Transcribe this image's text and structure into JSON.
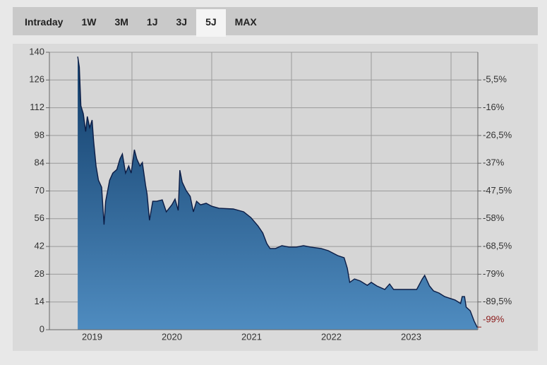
{
  "tabs": [
    "Intraday",
    "1W",
    "3M",
    "1J",
    "3J",
    "5J",
    "MAX"
  ],
  "selected_tab": 5,
  "chart_data": {
    "type": "area",
    "series": [
      {
        "color": "#0b1c45",
        "x": [
          2019.32,
          2019.34,
          2019.36,
          2019.39,
          2019.42,
          2019.44,
          2019.47,
          2019.5,
          2019.52,
          2019.55,
          2019.58,
          2019.62,
          2019.65,
          2019.67,
          2019.72,
          2019.76,
          2019.81,
          2019.85,
          2019.88,
          2019.92,
          2019.96,
          2019.99,
          2020.03,
          2020.06,
          2020.1,
          2020.13,
          2020.17,
          2020.19,
          2020.22,
          2020.26,
          2020.31,
          2020.38,
          2020.43,
          2020.5,
          2020.54,
          2020.58,
          2020.6,
          2020.63,
          2020.68,
          2020.73,
          2020.77,
          2020.81,
          2020.86,
          2020.93,
          2021.0,
          2021.09,
          2021.27,
          2021.4,
          2021.49,
          2021.58,
          2021.64,
          2021.69,
          2021.73,
          2021.8,
          2021.88,
          2021.97,
          2022.06,
          2022.15,
          2022.24,
          2022.37,
          2022.46,
          2022.58,
          2022.66,
          2022.7,
          2022.73,
          2022.79,
          2022.86,
          2022.95,
          2023.0,
          2023.07,
          2023.17,
          2023.23,
          2023.28,
          2023.39,
          2023.57,
          2023.64,
          2023.67,
          2023.73,
          2023.78,
          2023.85,
          2023.92,
          2024.05,
          2024.12,
          2024.14,
          2024.17,
          2024.19,
          2024.24,
          2024.29,
          2024.33
        ],
        "values": [
          137.8,
          132.5,
          113,
          109,
          100,
          107.6,
          102,
          105.8,
          95,
          82.6,
          75.4,
          71.9,
          53,
          64.8,
          75.4,
          79,
          80.8,
          86.2,
          88.7,
          79,
          82.6,
          79,
          90.8,
          86.2,
          82.6,
          84.4,
          73,
          68.4,
          55.2,
          64.8,
          64.8,
          65.5,
          59.5,
          63,
          65.9,
          60.2,
          80.5,
          74.4,
          70.2,
          67.3,
          59.5,
          64.8,
          63,
          63.8,
          62.3,
          61.3,
          60.9,
          59.5,
          56.6,
          52.4,
          48.8,
          43.5,
          41,
          41,
          42.4,
          41.7,
          41.7,
          42.4,
          41.7,
          41,
          39.9,
          37.4,
          36.3,
          31,
          23.9,
          25.6,
          24.6,
          22.4,
          23.9,
          22.1,
          20.3,
          23.1,
          20.3,
          20.3,
          20.3,
          25.6,
          27.4,
          22.1,
          19.6,
          18.5,
          16.7,
          15,
          13.2,
          16.7,
          16.7,
          11.4,
          9.6,
          4.3,
          1.1
        ]
      }
    ],
    "xlim": [
      2018.965,
      2024.336
    ],
    "xticks": [
      {
        "value": 2019.5,
        "label": "2019"
      },
      {
        "value": 2020.5,
        "label": "2020"
      },
      {
        "value": 2021.5,
        "label": "2021"
      },
      {
        "value": 2022.5,
        "label": "2022"
      },
      {
        "value": 2023.5,
        "label": "2023"
      }
    ],
    "xgrid": [
      2020,
      2021,
      2022,
      2023,
      2024
    ],
    "ylim": [
      0,
      140
    ],
    "yticks": [
      0,
      14,
      28,
      42,
      56,
      70,
      84,
      98,
      112,
      126,
      140
    ],
    "y2lim": [
      -100,
      5
    ],
    "y2ticks": [
      {
        "value": -5.5,
        "label": "-5,5%"
      },
      {
        "value": -16,
        "label": "-16%"
      },
      {
        "value": -26.5,
        "label": "-26,5%"
      },
      {
        "value": -37,
        "label": "-37%"
      },
      {
        "value": -47.5,
        "label": "-47,5%"
      },
      {
        "value": -58,
        "label": "-58%"
      },
      {
        "value": -68.5,
        "label": "-68,5%"
      },
      {
        "value": -79,
        "label": "-79%"
      },
      {
        "value": -89.5,
        "label": "-89,5%"
      }
    ],
    "last_value": {
      "value": -99,
      "label": "-99%",
      "color": "#8b1a1a"
    },
    "grid": true
  }
}
